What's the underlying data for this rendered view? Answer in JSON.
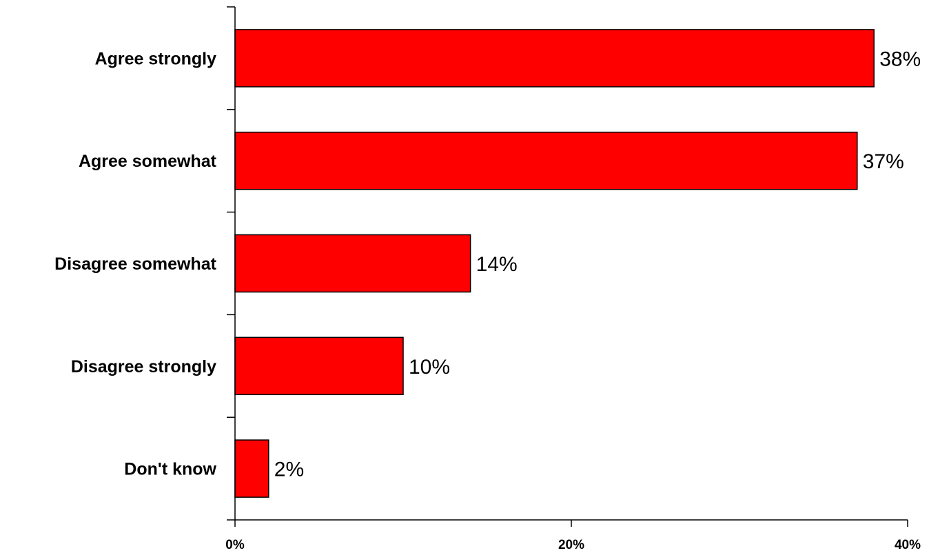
{
  "chart_data": {
    "type": "bar",
    "orientation": "horizontal",
    "categories": [
      "Agree strongly",
      "Agree somewhat",
      "Disagree somewhat",
      "Disagree strongly",
      "Don't know"
    ],
    "values": [
      38,
      37,
      14,
      10,
      2
    ],
    "value_labels": [
      "38%",
      "37%",
      "14%",
      "10%",
      "2%"
    ],
    "xlim": [
      0,
      40
    ],
    "xticks": [
      0,
      20,
      40
    ],
    "xtick_labels": [
      "0%",
      "20%",
      "40%"
    ],
    "bar_color": "#ff0000",
    "grid": false,
    "legend": "none"
  }
}
